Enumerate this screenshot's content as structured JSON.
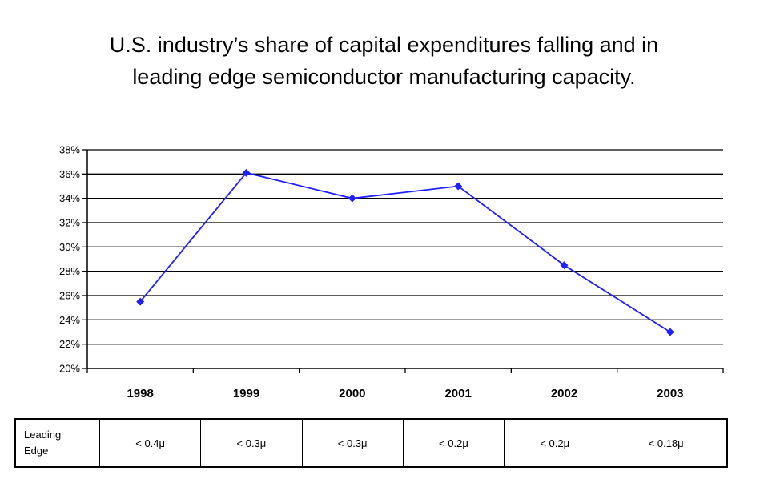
{
  "title": {
    "line1": "U.S. industry’s share of capital expenditures falling and in",
    "line2": "leading edge semiconductor manufacturing capacity."
  },
  "chart_data": {
    "type": "line",
    "title": "U.S. industry’s share of capital expenditures falling and in leading edge semiconductor manufacturing capacity.",
    "categories": [
      "1998",
      "1999",
      "2000",
      "2001",
      "2002",
      "2003"
    ],
    "series": [
      {
        "values": [
          25.5,
          36.1,
          34.0,
          35.0,
          28.5,
          23.0
        ],
        "color": "#1f1fff"
      }
    ],
    "ylim": [
      20,
      38
    ],
    "yticks": [
      "20%",
      "22%",
      "24%",
      "26%",
      "28%",
      "30%",
      "32%",
      "34%",
      "36%",
      "38%"
    ],
    "ytick_values": [
      20,
      22,
      24,
      26,
      28,
      30,
      32,
      34,
      36,
      38
    ],
    "xlabel": "",
    "ylabel": "",
    "grid": true,
    "legend": "none"
  },
  "table": {
    "row_header_line1": "Leading",
    "row_header_line2": "Edge",
    "cells": [
      "< 0.4μ",
      "< 0.3μ",
      "< 0.3μ",
      "< 0.2μ",
      "< 0.2μ",
      "< 0.18μ"
    ]
  }
}
